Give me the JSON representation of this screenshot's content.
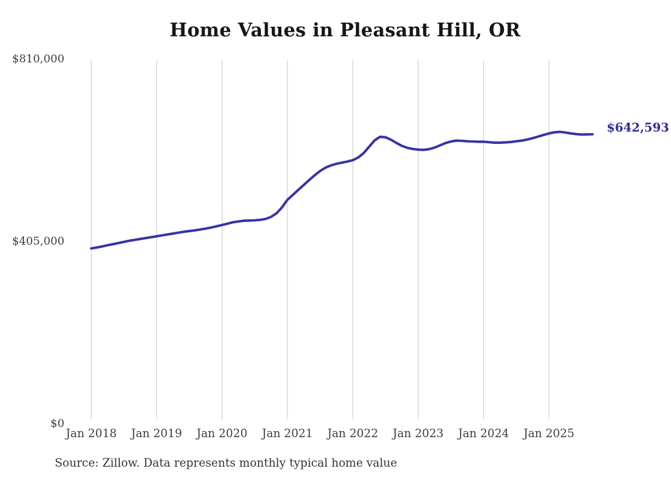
{
  "page": {
    "background": "#ffffff"
  },
  "chart_data": {
    "type": "line",
    "title": "Home Values in Pleasant Hill, OR",
    "source_note": "Source: Zillow. Data represents monthly typical home value",
    "end_label": "$642,593",
    "end_value": 642593,
    "line_color": "#3732a3",
    "end_label_color": "#2e2b96",
    "grid_color": "#cccccc",
    "grid": "vertical-only",
    "ylim": [
      0,
      810000
    ],
    "y_ticks": [
      {
        "label": "$810,000",
        "value": 810000
      },
      {
        "label": "$405,000",
        "value": 405000
      },
      {
        "label": "$0",
        "value": 0
      }
    ],
    "x_ticks": [
      {
        "label": "Jan 2018",
        "month_index": 0
      },
      {
        "label": "Jan 2019",
        "month_index": 12
      },
      {
        "label": "Jan 2020",
        "month_index": 24
      },
      {
        "label": "Jan 2021",
        "month_index": 36
      },
      {
        "label": "Jan 2022",
        "month_index": 48
      },
      {
        "label": "Jan 2023",
        "month_index": 60
      },
      {
        "label": "Jan 2024",
        "month_index": 72
      },
      {
        "label": "Jan 2025",
        "month_index": 84
      }
    ],
    "x_start": "Jan 2018",
    "x_end": "Sep 2025",
    "series": [
      {
        "name": "Monthly typical home value",
        "unit": "USD",
        "values": [
          389000,
          391000,
          393500,
          396000,
          398500,
          401000,
          403500,
          406000,
          408000,
          410000,
          412000,
          414000,
          416000,
          418000,
          420000,
          422000,
          424000,
          426000,
          427500,
          429000,
          431000,
          433000,
          435500,
          438000,
          441000,
          444000,
          447000,
          449000,
          450500,
          451000,
          451500,
          452500,
          454500,
          459000,
          467000,
          480000,
          497000,
          508000,
          519000,
          530000,
          541000,
          551500,
          561000,
          568500,
          573500,
          577000,
          579500,
          582000,
          585000,
          591000,
          601000,
          615000,
          629000,
          637000,
          636000,
          630500,
          623500,
          617000,
          612500,
          610000,
          608500,
          608000,
          609500,
          613000,
          618000,
          623000,
          626500,
          628500,
          628000,
          627000,
          626500,
          626000,
          626000,
          625000,
          624000,
          624000,
          624500,
          625500,
          627000,
          628500,
          631000,
          634000,
          637500,
          641000,
          644500,
          647000,
          648000,
          646500,
          644500,
          643000,
          642000,
          642300,
          642593
        ]
      }
    ]
  }
}
